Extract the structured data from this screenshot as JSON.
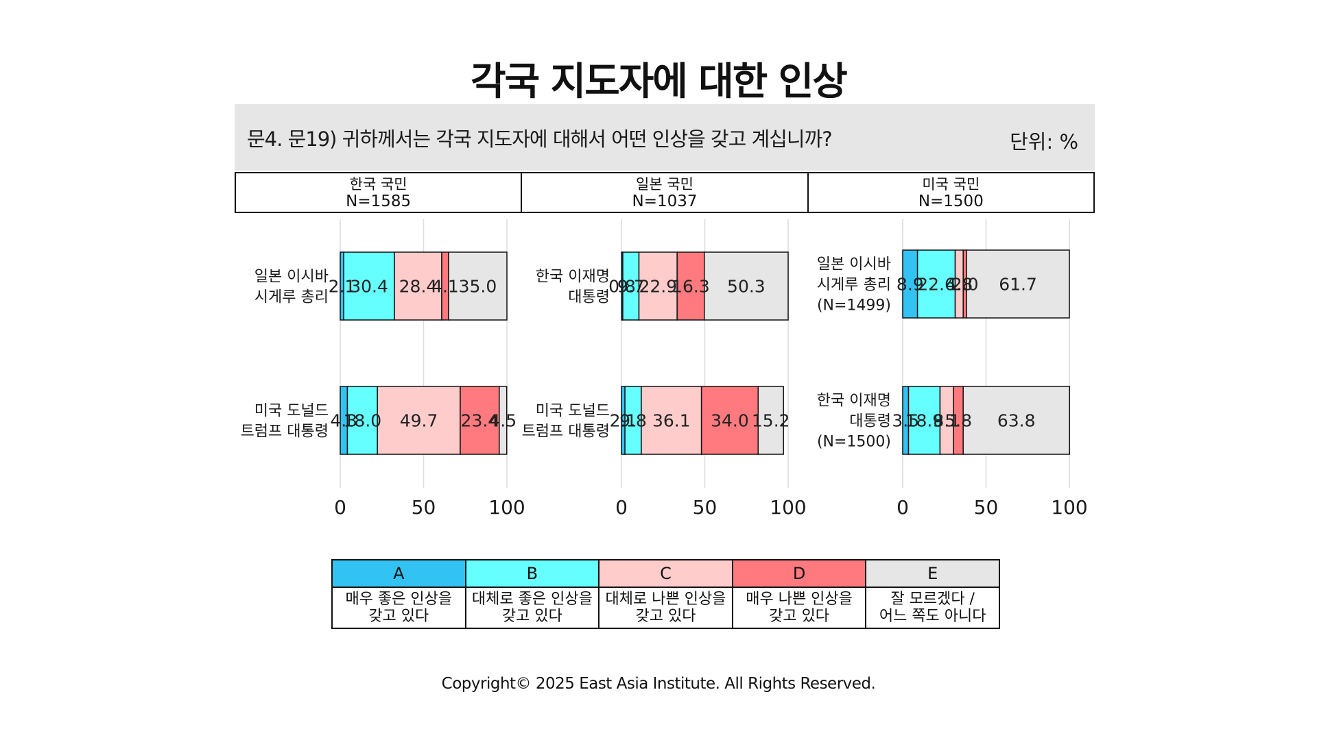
{
  "title": "각국 지도자에 대한 인상",
  "question": "문4. 문19) 귀하께서는 각국 지도자에 대해서 어떤 인상을 갖고 계십니까?",
  "unit": "단위: %",
  "colors": {
    "A": "#33c3f3",
    "B": "#66ffff",
    "C": "#ffcccc",
    "D": "#ff7a7e",
    "E": "#e6e6e6"
  },
  "chart_data": {
    "type": "bar",
    "stacked": true,
    "orientation": "horizontal",
    "categories_order": [
      "A",
      "B",
      "C",
      "D",
      "E"
    ],
    "xlim": [
      0,
      100
    ],
    "xticks": [
      "0",
      "50",
      "100"
    ],
    "grid": true,
    "panels": [
      {
        "header": "한국 국민",
        "n_label": "N=1585",
        "bars": [
          {
            "label": [
              "일본 이시바",
              "시게루 총리"
            ],
            "values": [
              2.1,
              30.4,
              28.4,
              4.1,
              35.0
            ],
            "value_labels": [
              "2.1",
              "30.4",
              "28.4",
              "4.1",
              "35.0"
            ]
          },
          {
            "label": [
              "미국 도널드",
              "트럼프 대통령"
            ],
            "values": [
              4.3,
              18.0,
              49.7,
              23.4,
              4.5
            ],
            "value_labels": [
              "4.3",
              "18.0",
              "49.7",
              "23.4",
              "4.5"
            ]
          }
        ]
      },
      {
        "header": "일본 국민",
        "n_label": "N=1037",
        "bars": [
          {
            "label": [
              "한국 이재명",
              "대통령"
            ],
            "values": [
              0.8,
              9.7,
              22.9,
              16.3,
              50.3
            ],
            "value_labels": [
              "0.8",
              "9.7",
              "22.9",
              "16.3",
              "50.3"
            ]
          },
          {
            "label": [
              "미국 도널드",
              "트럼프 대통령"
            ],
            "values": [
              2.1,
              9.8,
              36.1,
              34.0,
              15.2
            ],
            "value_labels": [
              "2.1",
              "9.8",
              "36.1",
              "34.0",
              "15.2"
            ]
          }
        ]
      },
      {
        "header": "미국 국민",
        "n_label": "N=1500",
        "bars": [
          {
            "label": [
              "일본 이시바",
              "시게루 총리",
              "(N=1499)"
            ],
            "values": [
              8.9,
              22.6,
              4.8,
              2.0,
              61.7
            ],
            "value_labels": [
              "8.9",
              "22.6",
              "4.8",
              "2.0",
              "61.7"
            ]
          },
          {
            "label": [
              "한국 이재명",
              "대통령",
              "(N=1500)"
            ],
            "values": [
              3.5,
              18.9,
              8.1,
              5.8,
              63.8
            ],
            "value_labels": [
              "3.5",
              "18.9",
              "8.1",
              "5.8",
              "63.8"
            ]
          }
        ]
      }
    ],
    "legend": [
      {
        "code": "A",
        "desc": [
          "매우 좋은 인상을",
          "갖고 있다"
        ]
      },
      {
        "code": "B",
        "desc": [
          "대체로 좋은 인상을",
          "갖고 있다"
        ]
      },
      {
        "code": "C",
        "desc": [
          "대체로 나쁜 인상을",
          "갖고 있다"
        ]
      },
      {
        "code": "D",
        "desc": [
          "매우 나쁜 인상을",
          "갖고 있다"
        ]
      },
      {
        "code": "E",
        "desc": [
          "잘 모르겠다 /",
          "어느 쪽도 아니다"
        ]
      }
    ]
  },
  "copyright": "Copyright© 2025 East Asia Institute. All Rights Reserved."
}
